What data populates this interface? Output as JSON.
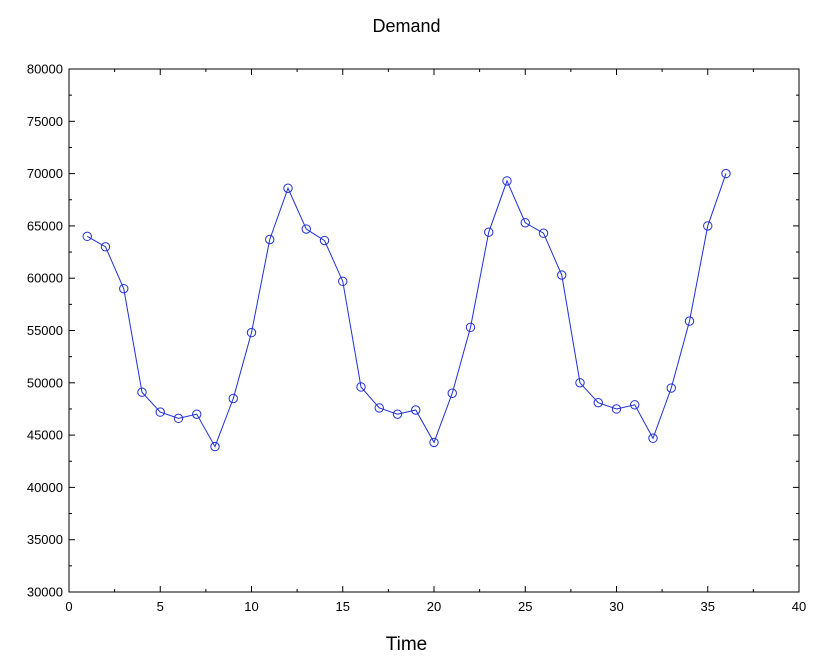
{
  "chart_data": {
    "type": "line",
    "title": "Demand",
    "xlabel": "Time",
    "ylabel": "",
    "xlim": [
      0,
      40
    ],
    "ylim": [
      30000,
      80000
    ],
    "x_ticks": [
      "0",
      "5",
      "10",
      "15",
      "20",
      "25",
      "30",
      "35",
      "40"
    ],
    "y_ticks": [
      "30000",
      "35000",
      "40000",
      "45000",
      "50000",
      "55000",
      "60000",
      "65000",
      "70000",
      "75000",
      "80000"
    ],
    "grid": false,
    "legend": "none",
    "line_color": "#1f2fd6",
    "series": [
      {
        "x": [
          1,
          2,
          3,
          4,
          5,
          6,
          7,
          8,
          9,
          10,
          11,
          12,
          13,
          14,
          15,
          16,
          17,
          18,
          19,
          20,
          21,
          22,
          23,
          24,
          25,
          26,
          27,
          28,
          29,
          30,
          31,
          32,
          33,
          34,
          35,
          36
        ],
        "values": [
          64000,
          63000,
          59000,
          49100,
          47200,
          46600,
          47000,
          43900,
          48500,
          54800,
          63700,
          68600,
          64700,
          63600,
          59700,
          49600,
          47600,
          47000,
          47400,
          44300,
          49000,
          55300,
          64400,
          69300,
          65300,
          64300,
          60300,
          50000,
          48100,
          47500,
          47900,
          44700,
          49500,
          55900,
          65000,
          70000
        ]
      }
    ]
  }
}
